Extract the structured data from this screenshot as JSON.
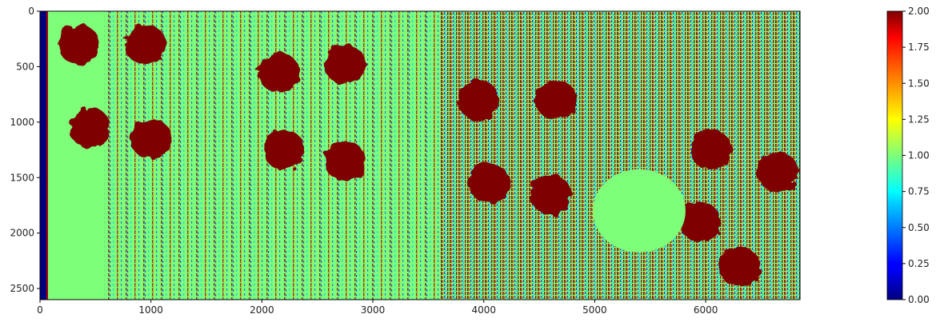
{
  "chart_data": {
    "type": "heatmap",
    "title": "",
    "xlabel": "",
    "ylabel": "",
    "xlim": [
      0,
      6850
    ],
    "ylim": [
      2600,
      0
    ],
    "x_ticks": [
      0,
      1000,
      2000,
      3000,
      4000,
      5000,
      6000
    ],
    "y_ticks": [
      0,
      500,
      1000,
      1500,
      2000,
      2500
    ],
    "colorbar": {
      "colormap": "jet",
      "range": [
        0.0,
        2.0
      ],
      "ticks": [
        "0.00",
        "0.25",
        "0.50",
        "0.75",
        "1.00",
        "1.25",
        "1.50",
        "1.75",
        "2.00"
      ]
    },
    "background_value": 1.0,
    "saturated_blobs": [
      {
        "x": 350,
        "y": 300,
        "value": 2.0
      },
      {
        "x": 950,
        "y": 300,
        "value": 2.0
      },
      {
        "x": 450,
        "y": 1050,
        "value": 2.0
      },
      {
        "x": 1000,
        "y": 1150,
        "value": 2.0
      },
      {
        "x": 2150,
        "y": 550,
        "value": 2.0
      },
      {
        "x": 2750,
        "y": 480,
        "value": 2.0
      },
      {
        "x": 2200,
        "y": 1250,
        "value": 2.0
      },
      {
        "x": 2750,
        "y": 1350,
        "value": 2.0
      },
      {
        "x": 3950,
        "y": 800,
        "value": 2.0
      },
      {
        "x": 4650,
        "y": 800,
        "value": 2.0
      },
      {
        "x": 4050,
        "y": 1550,
        "value": 2.0
      },
      {
        "x": 4600,
        "y": 1650,
        "value": 2.0
      },
      {
        "x": 6050,
        "y": 1250,
        "value": 2.0
      },
      {
        "x": 6650,
        "y": 1450,
        "value": 2.0
      },
      {
        "x": 5950,
        "y": 1900,
        "value": 2.0
      },
      {
        "x": 6300,
        "y": 2300,
        "value": 2.0
      }
    ],
    "uniform_region": {
      "x": 5400,
      "y": 1800,
      "value": 1.0
    }
  }
}
